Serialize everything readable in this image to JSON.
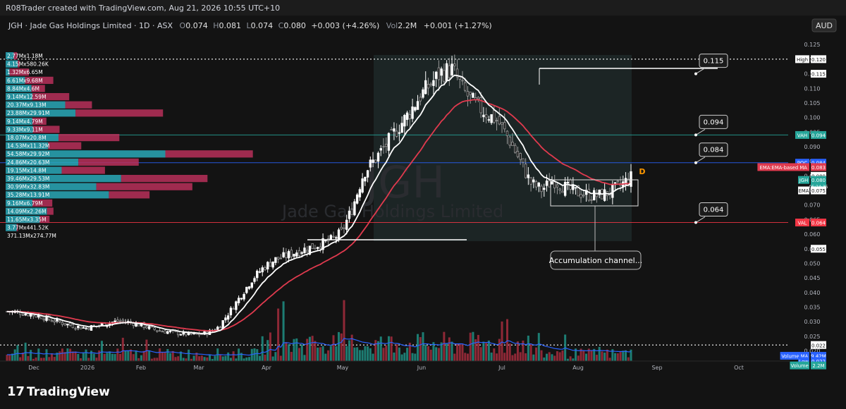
{
  "header": {
    "credit": "R08Trader created with TradingView.com, Aug 21, 2026 10:55 UTC+10",
    "symbol_line": "JGH · Jade Gas Holdings Limited · 1D · ASX",
    "o_label": "O",
    "o_value": "0.074",
    "h_label": "H",
    "h_value": "0.081",
    "l_label": "L",
    "l_value": "0.074",
    "c_label": "C",
    "c_value": "0.080",
    "change": "+0.003 (+4.26%)",
    "vol_label": "Vol",
    "vol_value": "2.2M",
    "vol_change": "+0.001 (+1.27%)",
    "currency": "AUD"
  },
  "watermark": {
    "ticker": "JGH",
    "name": "Jade Gas Holdings Limited"
  },
  "logo": {
    "text": "TradingView"
  },
  "colors": {
    "bg": "#131313",
    "up": "#ffffff",
    "down": "#9a9a9a",
    "ema_fast": "#ffffff",
    "ema_slow": "#e03a4e",
    "vah": "#26a69a",
    "poc": "#2962ff",
    "val": "#f23645",
    "vol_up": "#1f8a7e",
    "vol_down": "#9c2b3b",
    "vol_ma": "#2962ff",
    "vp_up": "#2aa9b8",
    "vp_down": "#b8305a"
  },
  "chart_data": {
    "type": "candlestick",
    "y_scale": {
      "min": 0.0165,
      "max": 0.1265
    },
    "y_ticks": [
      "0.125",
      "0.120",
      "0.115",
      "0.110",
      "0.105",
      "0.100",
      "0.095",
      "0.090",
      "0.085",
      "0.080",
      "0.075",
      "0.070",
      "0.065",
      "0.060",
      "0.055",
      "0.050",
      "0.045",
      "0.040",
      "0.035",
      "0.030",
      "0.025",
      "0.020"
    ],
    "x_ticks": [
      "Dec",
      "2026",
      "Feb",
      "Mar",
      "Apr",
      "May",
      "Jun",
      "Jul",
      "Aug",
      "Sep",
      "Oct"
    ],
    "price_levels": [
      {
        "name": "High",
        "value": 0.12,
        "label": "High",
        "price": "0.120",
        "color": "#ffffff"
      },
      {
        "name": "VAH",
        "value": 0.094,
        "label": "VAH",
        "price": "0.094",
        "color": "#26a69a"
      },
      {
        "name": "POC",
        "value": 0.0845,
        "label": "POC",
        "price": "0.084",
        "color": "#2962ff"
      },
      {
        "name": "VAL",
        "value": 0.064,
        "label": "VAL",
        "price": "0.064",
        "color": "#f23645"
      },
      {
        "name": "Low",
        "value": 0.022,
        "label": "Low",
        "price": "0.022",
        "color": "#ffffff"
      }
    ],
    "axis_tags": [
      {
        "label": "",
        "price": "0.115",
        "value": 0.115
      },
      {
        "label": "EMA:EMA-based MA",
        "price": "0.083",
        "value": 0.083
      },
      {
        "label": "",
        "price": "0.080",
        "value": 0.08
      },
      {
        "label": "JGH",
        "price": "0.080",
        "sub": "05:24:35",
        "value": 0.0786
      },
      {
        "label": "EMA",
        "price": "0.075",
        "value": 0.075
      },
      {
        "label": "",
        "price": "0.055",
        "value": 0.055
      },
      {
        "label": "",
        "price": "0.022",
        "value": 0.022
      },
      {
        "label": "Volume MA",
        "price": "9.42M",
        "value": 0.0183
      },
      {
        "label": "Low",
        "price": "0.022",
        "value": 0.0165
      },
      {
        "label": "Volume",
        "price": "2.2M",
        "value": 0.015
      }
    ],
    "callouts": [
      {
        "text": "0.115",
        "value": 0.115
      },
      {
        "text": "0.094",
        "value": 0.094
      },
      {
        "text": "0.084",
        "value": 0.0845
      },
      {
        "text": "0.064",
        "value": 0.064
      }
    ],
    "annotation": "Accumulation channel...",
    "event_marker": "D",
    "volume_profile": [
      {
        "label": "2.77Mx1.18M",
        "up": 2.77,
        "down": 1.18
      },
      {
        "label": "4.15Mx580.26K",
        "up": 4.15,
        "down": 0.58
      },
      {
        "label": "1.32Mx6.65M",
        "up": 1.32,
        "down": 6.65
      },
      {
        "label": "6.61Mx9.68M",
        "up": 6.61,
        "down": 9.68
      },
      {
        "label": "8.84Mx4.6M",
        "up": 8.84,
        "down": 4.6
      },
      {
        "label": "9.14Mx12.59M",
        "up": 9.14,
        "down": 12.59
      },
      {
        "label": "20.37Mx9.13M",
        "up": 20.37,
        "down": 9.13
      },
      {
        "label": "23.88Mx29.91M",
        "up": 23.88,
        "down": 29.91
      },
      {
        "label": "9.14Mx4.79M",
        "up": 9.14,
        "down": 4.79
      },
      {
        "label": "9.33Mx9.11M",
        "up": 9.33,
        "down": 9.11
      },
      {
        "label": "18.07Mx20.8M",
        "up": 18.07,
        "down": 20.8
      },
      {
        "label": "14.53Mx11.32M",
        "up": 14.53,
        "down": 11.32
      },
      {
        "label": "54.58Mx29.92M",
        "up": 54.58,
        "down": 29.92
      },
      {
        "label": "24.86Mx20.63M",
        "up": 24.86,
        "down": 20.63
      },
      {
        "label": "19.15Mx14.8M",
        "up": 19.15,
        "down": 14.8
      },
      {
        "label": "39.46Mx29.53M",
        "up": 39.46,
        "down": 29.53
      },
      {
        "label": "30.99Mx32.83M",
        "up": 30.99,
        "down": 32.83
      },
      {
        "label": "35.28Mx13.91M",
        "up": 35.28,
        "down": 13.91
      },
      {
        "label": "9.16Mx6.79M",
        "up": 9.16,
        "down": 6.79
      },
      {
        "label": "14.09Mx2.26M",
        "up": 14.09,
        "down": 2.26
      },
      {
        "label": "11.65Mx3.35M",
        "up": 11.65,
        "down": 3.35
      },
      {
        "label": "3.77Mx441.52K",
        "up": 3.77,
        "down": 0.44
      },
      {
        "label": "371.13Mx274.77M",
        "up": 0,
        "down": 0
      }
    ],
    "close_path": [
      0.0335,
      0.0332,
      0.0326,
      0.0318,
      0.0305,
      0.0295,
      0.0285,
      0.0278,
      0.0285,
      0.0295,
      0.0302,
      0.0298,
      0.0289,
      0.0275,
      0.0268,
      0.0262,
      0.0258,
      0.0255,
      0.0262,
      0.0282,
      0.0335,
      0.039,
      0.0445,
      0.0485,
      0.0512,
      0.0525,
      0.054,
      0.0552,
      0.0565,
      0.0578,
      0.0605,
      0.069,
      0.081,
      0.0855,
      0.0905,
      0.096,
      0.101,
      0.107,
      0.1115,
      0.1155,
      0.1165,
      0.109,
      0.1045,
      0.1015,
      0.099,
      0.093,
      0.0855,
      0.0775,
      0.0752,
      0.0785,
      0.0762,
      0.0745,
      0.0735,
      0.0732,
      0.0742,
      0.0765,
      0.0795
    ]
  }
}
